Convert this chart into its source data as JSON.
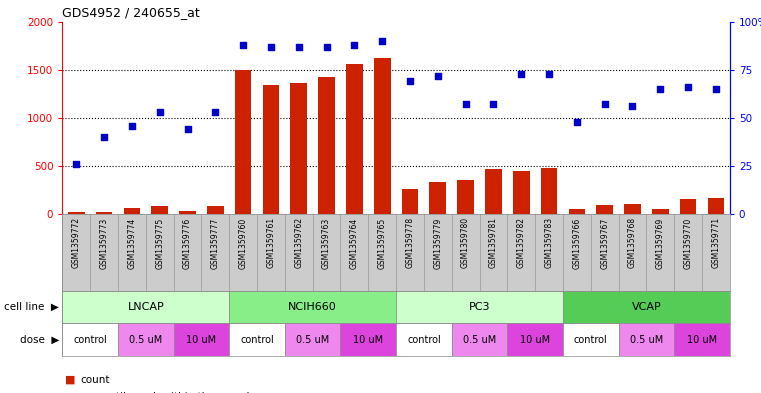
{
  "title": "GDS4952 / 240655_at",
  "samples": [
    "GSM1359772",
    "GSM1359773",
    "GSM1359774",
    "GSM1359775",
    "GSM1359776",
    "GSM1359777",
    "GSM1359760",
    "GSM1359761",
    "GSM1359762",
    "GSM1359763",
    "GSM1359764",
    "GSM1359765",
    "GSM1359778",
    "GSM1359779",
    "GSM1359780",
    "GSM1359781",
    "GSM1359782",
    "GSM1359783",
    "GSM1359766",
    "GSM1359767",
    "GSM1359768",
    "GSM1359769",
    "GSM1359770",
    "GSM1359771"
  ],
  "counts": [
    20,
    25,
    60,
    90,
    30,
    90,
    1500,
    1340,
    1360,
    1420,
    1560,
    1620,
    260,
    330,
    350,
    470,
    450,
    480,
    55,
    100,
    110,
    55,
    155,
    170
  ],
  "percentiles": [
    26,
    40,
    46,
    53,
    44,
    53,
    88,
    87,
    87,
    87,
    88,
    90,
    69,
    72,
    57,
    57,
    73,
    73,
    48,
    57,
    56,
    65,
    66,
    65
  ],
  "cell_lines": [
    {
      "name": "LNCAP",
      "start": 0,
      "end": 6,
      "color": "#ccffcc"
    },
    {
      "name": "NCIH660",
      "start": 6,
      "end": 12,
      "color": "#88ee88"
    },
    {
      "name": "PC3",
      "start": 12,
      "end": 18,
      "color": "#ccffcc"
    },
    {
      "name": "VCAP",
      "start": 18,
      "end": 24,
      "color": "#55cc55"
    }
  ],
  "doses": [
    {
      "name": "control",
      "start": 0,
      "end": 2,
      "color": "#ffffff"
    },
    {
      "name": "0.5 uM",
      "start": 2,
      "end": 4,
      "color": "#ee88ee"
    },
    {
      "name": "10 uM",
      "start": 4,
      "end": 6,
      "color": "#dd44dd"
    },
    {
      "name": "control",
      "start": 6,
      "end": 8,
      "color": "#ffffff"
    },
    {
      "name": "0.5 uM",
      "start": 8,
      "end": 10,
      "color": "#ee88ee"
    },
    {
      "name": "10 uM",
      "start": 10,
      "end": 12,
      "color": "#dd44dd"
    },
    {
      "name": "control",
      "start": 12,
      "end": 14,
      "color": "#ffffff"
    },
    {
      "name": "0.5 uM",
      "start": 14,
      "end": 16,
      "color": "#ee88ee"
    },
    {
      "name": "10 uM",
      "start": 16,
      "end": 18,
      "color": "#dd44dd"
    },
    {
      "name": "control",
      "start": 18,
      "end": 20,
      "color": "#ffffff"
    },
    {
      "name": "0.5 uM",
      "start": 20,
      "end": 22,
      "color": "#ee88ee"
    },
    {
      "name": "10 uM",
      "start": 22,
      "end": 24,
      "color": "#dd44dd"
    }
  ],
  "ylim_left": [
    0,
    2000
  ],
  "ylim_right": [
    0,
    100
  ],
  "yticks_left": [
    0,
    500,
    1000,
    1500,
    2000
  ],
  "yticks_right": [
    0,
    25,
    50,
    75,
    100
  ],
  "bar_color": "#cc2200",
  "dot_color": "#0000cc",
  "bg_color": "#ffffff"
}
